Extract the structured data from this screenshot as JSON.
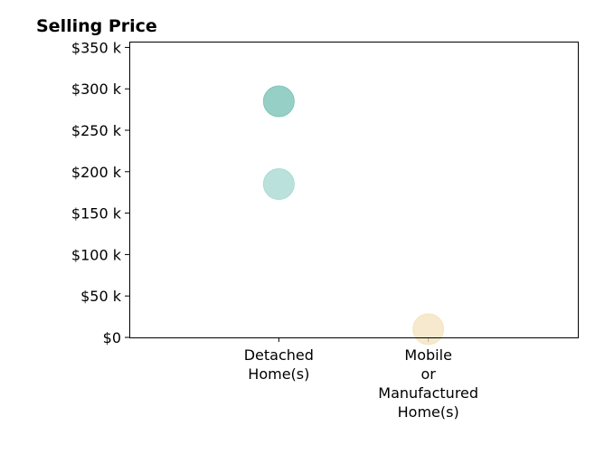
{
  "chart_data": {
    "type": "scatter",
    "title": "Selling Price",
    "xlabel": "",
    "ylabel": "",
    "categories": [
      [
        "Detached",
        "Home(s)"
      ],
      [
        "Mobile",
        "or",
        "Manufactured",
        "Home(s)"
      ]
    ],
    "y_ticks": [
      0,
      50000,
      100000,
      150000,
      200000,
      250000,
      300000,
      350000
    ],
    "y_tick_labels": [
      "$0",
      "$50 k",
      "$100 k",
      "$150 k",
      "$200 k",
      "$250 k",
      "$300 k",
      "$350 k"
    ],
    "ylim": [
      0,
      357000
    ],
    "xlim": [
      -1,
      2
    ],
    "grid": false,
    "points": [
      {
        "category_index": 0,
        "y": 285000,
        "color": "#7fc4b8",
        "opacity": 0.82
      },
      {
        "category_index": 0,
        "y": 185000,
        "color": "#a8d8d3",
        "opacity": 0.78
      },
      {
        "category_index": 1,
        "y": 10000,
        "color": "#f5e3c0",
        "opacity": 0.8
      }
    ]
  }
}
